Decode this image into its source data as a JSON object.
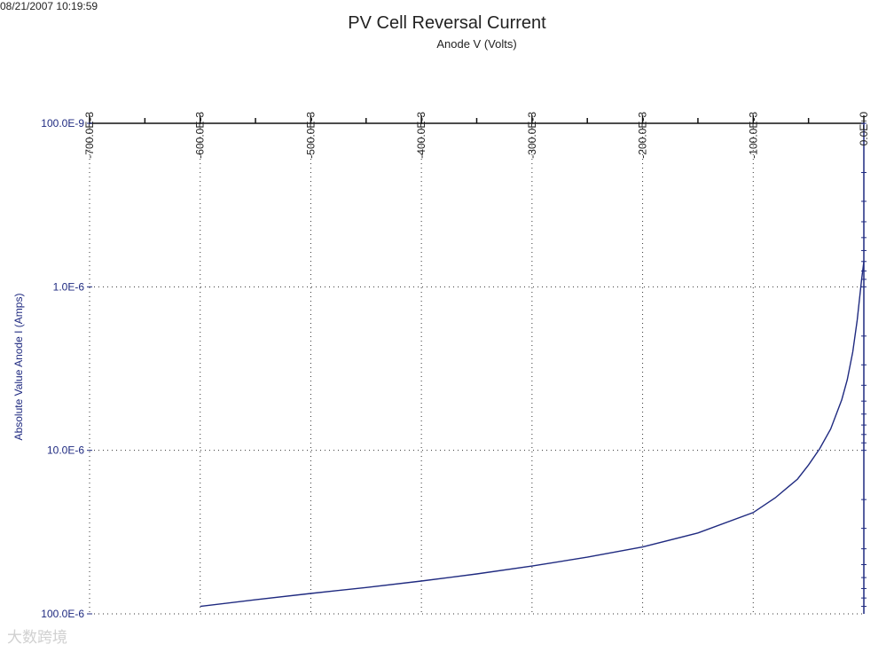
{
  "timestamp": "08/21/2007 10:19:59",
  "watermark_text": "大数跨境",
  "chart_data": {
    "type": "line",
    "title": "PV Cell Reversal Current",
    "xlabel": "Anode V (Volts)",
    "ylabel": "Absolute Value Anode I (Amps)",
    "x_axis_position": "top",
    "xlim": [
      -0.7,
      0.0
    ],
    "x_ticks": [
      -0.7,
      -0.6,
      -0.5,
      -0.4,
      -0.3,
      -0.2,
      -0.1,
      0.0
    ],
    "x_tick_labels": [
      "-700.0E-3",
      "-600.0E-3",
      "-500.0E-3",
      "-400.0E-3",
      "-300.0E-3",
      "-200.0E-3",
      "-100.0E-3",
      "0.0E+0"
    ],
    "y_scale": "log",
    "y_direction": "inverted",
    "ylim": [
      1e-07,
      0.0001
    ],
    "y_ticks": [
      1e-07,
      1e-06,
      1e-05,
      0.0001
    ],
    "y_tick_labels": [
      "100.0E-9",
      "1.0E-6",
      "10.0E-6",
      "100.0E-6"
    ],
    "grid": true,
    "line_color": "#1f2a80",
    "series": [
      {
        "x": [
          -0.6,
          -0.55,
          -0.5,
          -0.45,
          -0.4,
          -0.35,
          -0.3,
          -0.25,
          -0.2,
          -0.15,
          -0.1,
          -0.08,
          -0.06,
          -0.05,
          -0.04,
          -0.03,
          -0.02,
          -0.015,
          -0.01,
          -0.006,
          -0.004,
          -0.002,
          0.0
        ],
        "y": [
          9e-05,
          8.2e-05,
          7.5e-05,
          6.9e-05,
          6.3e-05,
          5.7e-05,
          5.1e-05,
          4.5e-05,
          3.9e-05,
          3.2e-05,
          2.4e-05,
          1.95e-05,
          1.5e-05,
          1.23e-05,
          9.8e-06,
          7.4e-06,
          4.9e-06,
          3.7e-06,
          2.5e-06,
          1.6e-06,
          1.2e-06,
          9e-07,
          7e-07
        ]
      }
    ]
  }
}
